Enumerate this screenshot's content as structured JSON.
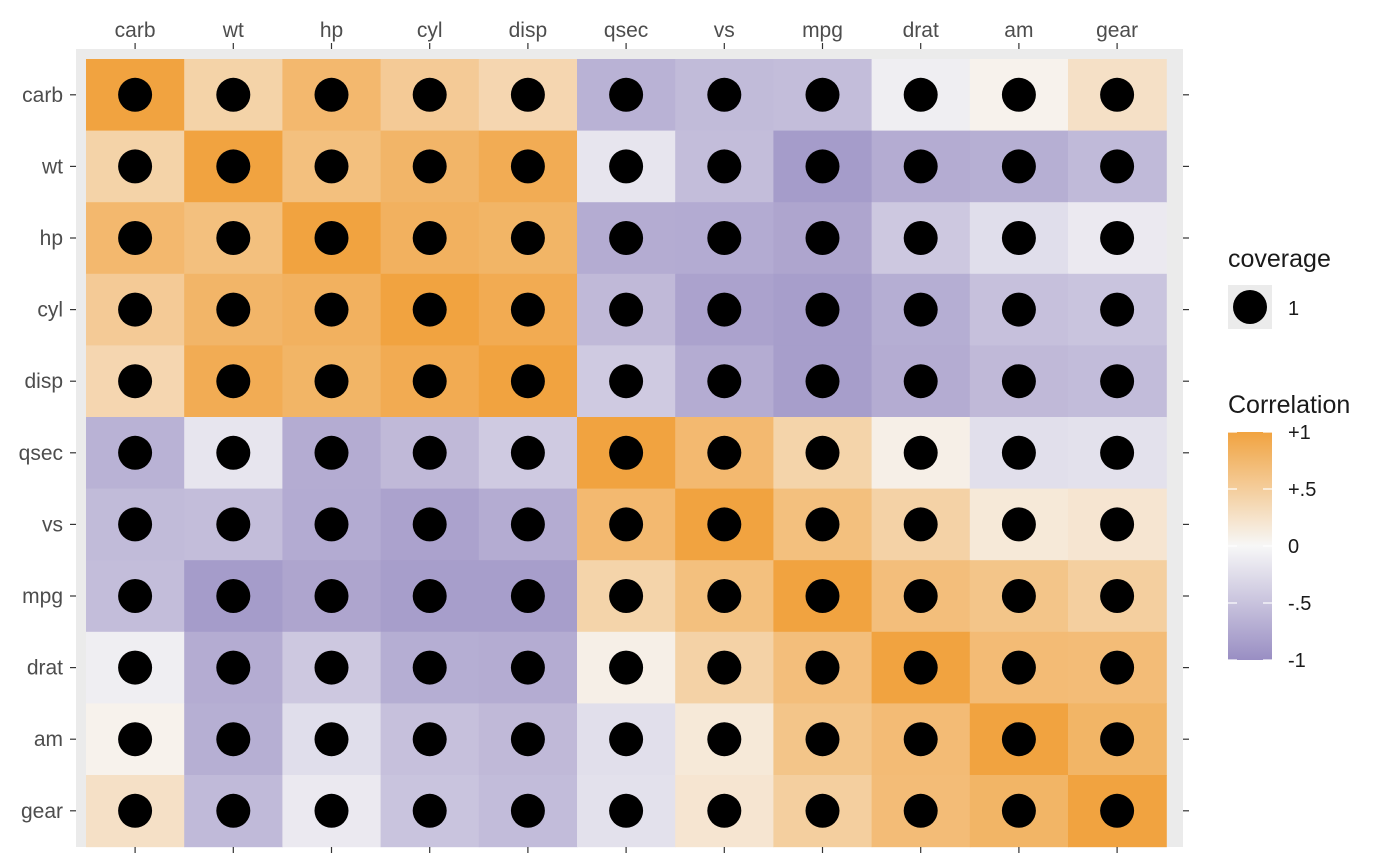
{
  "chart_data": {
    "type": "heatmap",
    "variables": [
      "carb",
      "wt",
      "hp",
      "cyl",
      "disp",
      "qsec",
      "vs",
      "mpg",
      "drat",
      "am",
      "gear"
    ],
    "x_axis_position": "top",
    "y_axis_order": "top-to-bottom same as x",
    "values": [
      [
        1.0,
        0.43,
        0.75,
        0.53,
        0.39,
        -0.66,
        -0.57,
        -0.55,
        -0.09,
        0.06,
        0.27
      ],
      [
        0.43,
        1.0,
        0.66,
        0.78,
        0.89,
        -0.17,
        -0.55,
        -0.87,
        -0.71,
        -0.69,
        -0.58
      ],
      [
        0.75,
        0.66,
        1.0,
        0.83,
        0.79,
        -0.71,
        -0.72,
        -0.78,
        -0.45,
        -0.24,
        -0.13
      ],
      [
        0.53,
        0.78,
        0.83,
        1.0,
        0.9,
        -0.59,
        -0.81,
        -0.85,
        -0.7,
        -0.52,
        -0.49
      ],
      [
        0.39,
        0.89,
        0.79,
        0.9,
        1.0,
        -0.43,
        -0.71,
        -0.85,
        -0.71,
        -0.59,
        -0.56
      ],
      [
        -0.66,
        -0.17,
        -0.71,
        -0.59,
        -0.43,
        1.0,
        0.74,
        0.42,
        0.09,
        -0.23,
        -0.21
      ],
      [
        -0.57,
        -0.55,
        -0.72,
        -0.81,
        -0.71,
        0.74,
        1.0,
        0.66,
        0.44,
        0.17,
        0.21
      ],
      [
        -0.55,
        -0.87,
        -0.78,
        -0.85,
        -0.85,
        0.42,
        0.66,
        1.0,
        0.68,
        0.6,
        0.48
      ],
      [
        -0.09,
        -0.71,
        -0.45,
        -0.7,
        -0.71,
        0.09,
        0.44,
        0.68,
        1.0,
        0.71,
        0.7
      ],
      [
        0.06,
        -0.69,
        -0.24,
        -0.52,
        -0.59,
        -0.23,
        0.17,
        0.6,
        0.71,
        1.0,
        0.79
      ],
      [
        0.27,
        -0.58,
        -0.13,
        -0.49,
        -0.56,
        -0.21,
        0.21,
        0.48,
        0.7,
        0.79,
        1.0
      ]
    ],
    "point_marker": "filled black circle in every cell",
    "legend": {
      "size_title": "coverage",
      "size_label": "1",
      "color_title": "Correlation",
      "color_ticks": [
        {
          "value": 1,
          "label": "+1"
        },
        {
          "value": 0.5,
          "label": "+.5"
        },
        {
          "value": 0,
          "label": "0"
        },
        {
          "value": -0.5,
          "label": "-.5"
        },
        {
          "value": -1,
          "label": "-1"
        }
      ],
      "placement": "right"
    },
    "colors": {
      "positive": "#f1a340",
      "zero": "#f7f7f7",
      "negative": "#998ec3",
      "panel_background": "#ebebeb",
      "point": "#000000"
    },
    "grid": false
  }
}
